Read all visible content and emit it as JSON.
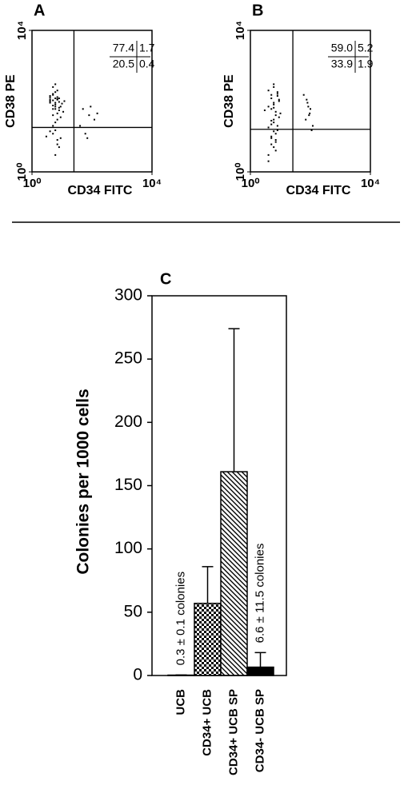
{
  "chart_data": [
    {
      "type": "scatter",
      "panel": "A",
      "xlabel": "CD34 FITC",
      "ylabel": "CD38 PE",
      "xscale": "log",
      "yscale": "log",
      "xlim": [
        1,
        10000
      ],
      "ylim": [
        1,
        10000
      ],
      "xticks": [
        {
          "value": 1,
          "label": "10⁰"
        },
        {
          "value": 10000,
          "label": "10⁴"
        }
      ],
      "yticks": [
        {
          "value": 1,
          "label": "10⁰"
        },
        {
          "value": 10000,
          "label": "10⁴"
        }
      ],
      "gate": {
        "x": 25,
        "y": 18
      },
      "quadrant_labels": [
        "77.4",
        "1.7",
        "20.5",
        "0.4"
      ],
      "color": "#000000",
      "x": [
        4,
        5,
        6,
        7,
        8,
        5,
        6,
        7,
        4,
        9,
        5,
        6,
        8,
        7,
        6,
        5,
        4,
        10,
        12,
        6,
        7,
        5,
        8,
        6,
        9,
        4,
        5,
        7,
        6,
        8,
        3,
        5,
        6,
        7,
        4,
        9,
        6,
        5,
        7,
        8,
        11,
        6,
        5,
        4,
        7,
        50,
        80,
        120,
        60,
        150,
        40,
        90,
        70
      ],
      "values": [
        100,
        150,
        80,
        200,
        120,
        60,
        90,
        110,
        140,
        70,
        250,
        180,
        95,
        130,
        60,
        75,
        110,
        85,
        100,
        300,
        45,
        160,
        55,
        120,
        35,
        90,
        12,
        8,
        15,
        5,
        10,
        20,
        3,
        6,
        14,
        9,
        25,
        40,
        30,
        65,
        50,
        70,
        105,
        125,
        115,
        60,
        40,
        30,
        12,
        45,
        20,
        70,
        9
      ]
    },
    {
      "type": "scatter",
      "panel": "B",
      "xlabel": "CD34 FITC",
      "ylabel": "CD38 PE",
      "xscale": "log",
      "yscale": "log",
      "xlim": [
        1,
        10000
      ],
      "ylim": [
        1,
        10000
      ],
      "xticks": [
        {
          "value": 1,
          "label": "10⁰"
        },
        {
          "value": 10000,
          "label": "10⁴"
        }
      ],
      "yticks": [
        {
          "value": 1,
          "label": "10⁰"
        },
        {
          "value": 10000,
          "label": "10⁴"
        }
      ],
      "gate": {
        "x": 26,
        "y": 16
      },
      "quadrant_labels": [
        "59.0",
        "5.2",
        "33.9",
        "1.9"
      ],
      "color": "#000000",
      "x": [
        4,
        5,
        6,
        7,
        8,
        5,
        6,
        4,
        9,
        5,
        6,
        8,
        7,
        6,
        5,
        4,
        10,
        6,
        7,
        5,
        8,
        6,
        9,
        4,
        5,
        7,
        6,
        8,
        3,
        5,
        6,
        7,
        4,
        9,
        6,
        5,
        7,
        8,
        60,
        80,
        100,
        70,
        90,
        120,
        75,
        110,
        85,
        95
      ],
      "values": [
        200,
        150,
        80,
        40,
        20,
        10,
        5,
        3,
        100,
        60,
        30,
        15,
        8,
        250,
        120,
        70,
        45,
        25,
        12,
        6,
        180,
        90,
        35,
        18,
        9,
        4,
        300,
        140,
        55,
        28,
        14,
        7,
        2,
        110,
        65,
        22,
        50,
        160,
        150,
        90,
        60,
        30,
        40,
        20,
        110,
        15,
        70,
        45
      ]
    },
    {
      "type": "bar",
      "panel": "C",
      "ylabel": "Colonies per 1000 cells",
      "categories": [
        "UCB",
        "CD34+ UCB",
        "CD34+ UCB SP",
        "CD34- UCB SP"
      ],
      "values": [
        0.3,
        57,
        161,
        6.6
      ],
      "errors": [
        0.1,
        29,
        113,
        11.5
      ],
      "value_labels": [
        "0.3 ± 0.1 colonies",
        null,
        null,
        "6.6 ± 11.5 colonies"
      ],
      "patterns": [
        "none",
        "checker",
        "hatch",
        "solid"
      ],
      "color": "#000000",
      "ylim": [
        0,
        300
      ],
      "yticks": [
        0,
        50,
        100,
        150,
        200,
        250,
        300
      ]
    }
  ]
}
